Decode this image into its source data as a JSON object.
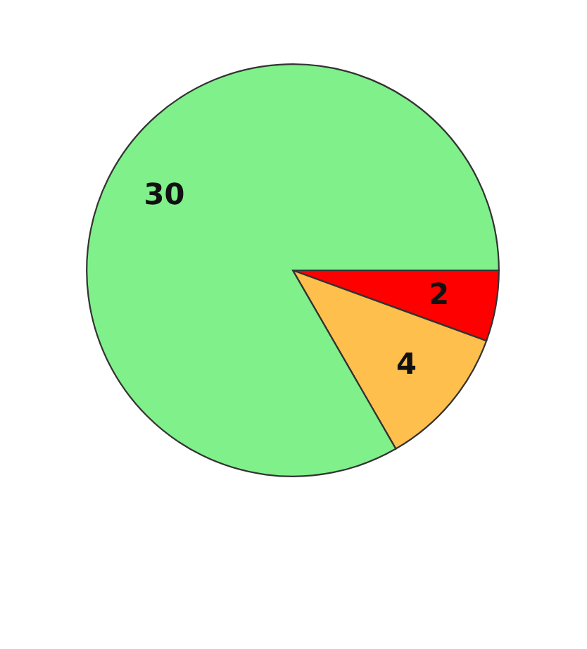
{
  "chart_data": {
    "type": "pie",
    "categories": [
      null,
      null,
      null
    ],
    "values": [
      2,
      4,
      30
    ],
    "colors": [
      "#ff0000",
      "#ffbf4d",
      "#80f08a"
    ],
    "data_labels": true
  }
}
